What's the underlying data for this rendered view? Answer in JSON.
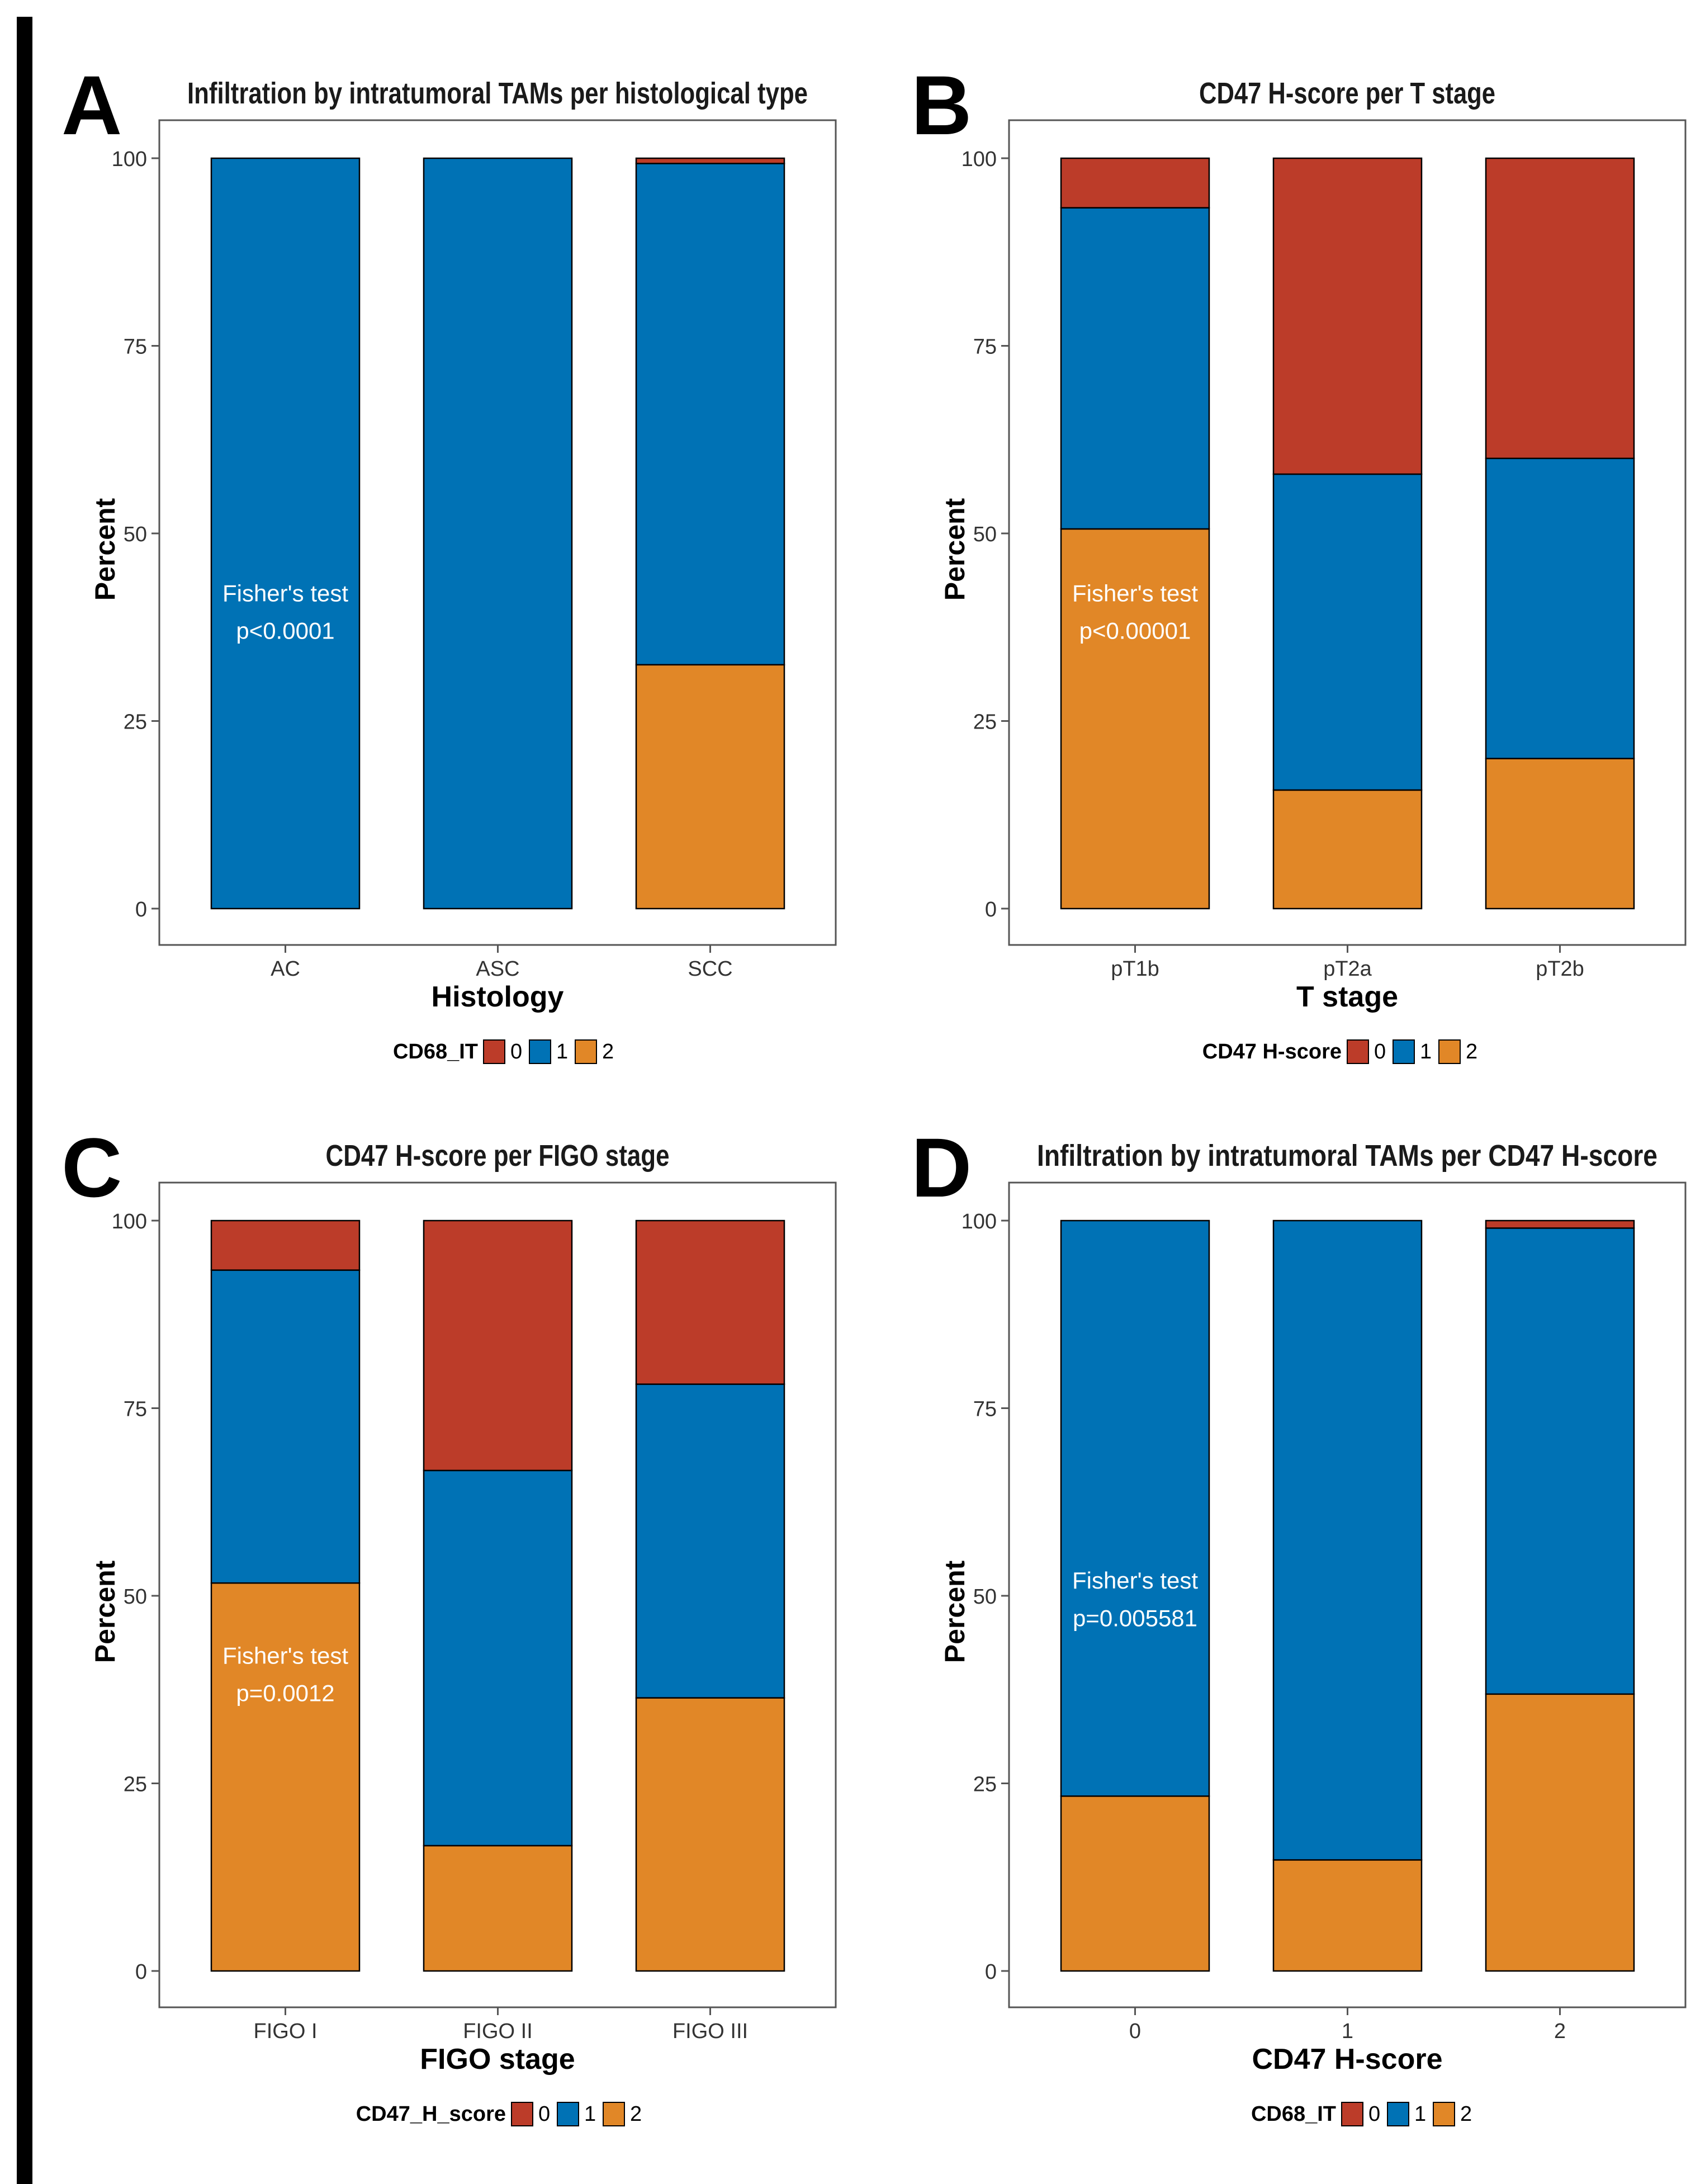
{
  "colors": {
    "level0": "#bc3c29",
    "level1": "#0072b5",
    "level2": "#e18727",
    "frame": "#555555",
    "text": "#1a1a1a"
  },
  "chart_data": [
    {
      "panel": "A",
      "type": "bar",
      "stacked": true,
      "title": "Infiltration by intratumoral TAMs per histological type",
      "xlabel": "Histology",
      "ylabel": "Percent",
      "ylim": [
        0,
        100
      ],
      "yticks": [
        0,
        25,
        50,
        75,
        100
      ],
      "categories": [
        "AC",
        "ASC",
        "SCC"
      ],
      "series": [
        {
          "name": "2",
          "values": [
            0,
            0,
            32.5
          ]
        },
        {
          "name": "1",
          "values": [
            100,
            100,
            66.8
          ]
        },
        {
          "name": "0",
          "values": [
            0,
            0,
            0.7
          ]
        }
      ],
      "legend_title": "CD68_IT",
      "annotation": {
        "line1": "Fisher's test",
        "line2": "p<0.0001",
        "y1": 42,
        "y2": 37
      }
    },
    {
      "panel": "B",
      "type": "bar",
      "stacked": true,
      "title": "CD47 H-score per T stage",
      "xlabel": "T stage",
      "ylabel": "Percent",
      "ylim": [
        0,
        100
      ],
      "yticks": [
        0,
        25,
        50,
        75,
        100
      ],
      "categories": [
        "pT1b",
        "pT2a",
        "pT2b"
      ],
      "series": [
        {
          "name": "2",
          "values": [
            50.6,
            15.8,
            20
          ]
        },
        {
          "name": "1",
          "values": [
            42.8,
            42.1,
            40
          ]
        },
        {
          "name": "0",
          "values": [
            6.6,
            42.1,
            40
          ]
        }
      ],
      "legend_title": "CD47 H-score",
      "annotation": {
        "line1": "Fisher's test",
        "line2": "p<0.00001",
        "y1": 42,
        "y2": 37
      }
    },
    {
      "panel": "C",
      "type": "bar",
      "stacked": true,
      "title": "CD47 H-score per FIGO stage",
      "xlabel": "FIGO stage",
      "ylabel": "Percent",
      "ylim": [
        0,
        100
      ],
      "yticks": [
        0,
        25,
        50,
        75,
        100
      ],
      "categories": [
        "FIGO I",
        "FIGO II",
        "FIGO III"
      ],
      "series": [
        {
          "name": "2",
          "values": [
            51.7,
            16.7,
            36.4
          ]
        },
        {
          "name": "1",
          "values": [
            41.7,
            50,
            41.8
          ]
        },
        {
          "name": "0",
          "values": [
            6.6,
            33.3,
            21.8
          ]
        }
      ],
      "legend_title": "CD47_H_score",
      "annotation": {
        "line1": "Fisher's test",
        "line2": "p=0.0012",
        "y1": 42,
        "y2": 37
      }
    },
    {
      "panel": "D",
      "type": "bar",
      "stacked": true,
      "title": "Infiltration by intratumoral TAMs per CD47 H-score",
      "xlabel": "CD47 H-score",
      "ylabel": "Percent",
      "ylim": [
        0,
        100
      ],
      "yticks": [
        0,
        25,
        50,
        75,
        100
      ],
      "categories": [
        "0",
        "1",
        "2"
      ],
      "series": [
        {
          "name": "2",
          "values": [
            23.3,
            14.8,
            36.9
          ]
        },
        {
          "name": "1",
          "values": [
            76.7,
            85.2,
            62.1
          ]
        },
        {
          "name": "0",
          "values": [
            0,
            0,
            1
          ]
        }
      ],
      "legend_title": "CD68_IT",
      "annotation": {
        "line1": "Fisher's test",
        "line2": "p=0.005581",
        "y1": 52,
        "y2": 47
      }
    }
  ]
}
